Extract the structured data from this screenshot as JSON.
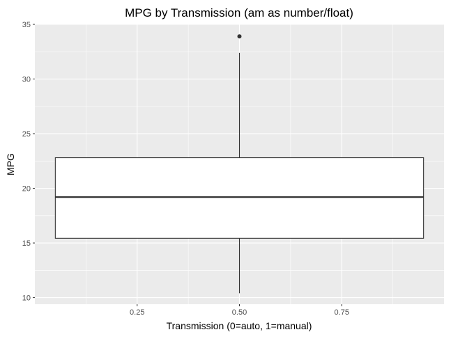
{
  "chart_data": {
    "type": "boxplot",
    "title": "MPG by Transmission (am as number/float)",
    "xlabel": "Transmission (0=auto, 1=manual)",
    "ylabel": "MPG",
    "xlim": [
      0.0,
      1.0
    ],
    "ylim": [
      9.4,
      35.0
    ],
    "x_ticks": [
      0.25,
      0.5,
      0.75
    ],
    "x_tick_labels": [
      "0.25",
      "0.50",
      "0.75"
    ],
    "y_ticks": [
      10,
      15,
      20,
      25,
      30,
      35
    ],
    "y_tick_labels": [
      "10",
      "15",
      "20",
      "25",
      "30",
      "35"
    ],
    "grid": true,
    "box": {
      "x": 0.5,
      "x_range": [
        0.05,
        0.95
      ],
      "whisker_low": 10.4,
      "q1": 15.43,
      "median": 19.2,
      "q3": 22.8,
      "whisker_high": 32.4,
      "outliers": [
        33.9
      ]
    },
    "colors": {
      "panel": "#ebebeb",
      "grid": "#ffffff",
      "box_fill": "#ffffff",
      "box_line": "#333333",
      "outlier": "#333333"
    }
  }
}
